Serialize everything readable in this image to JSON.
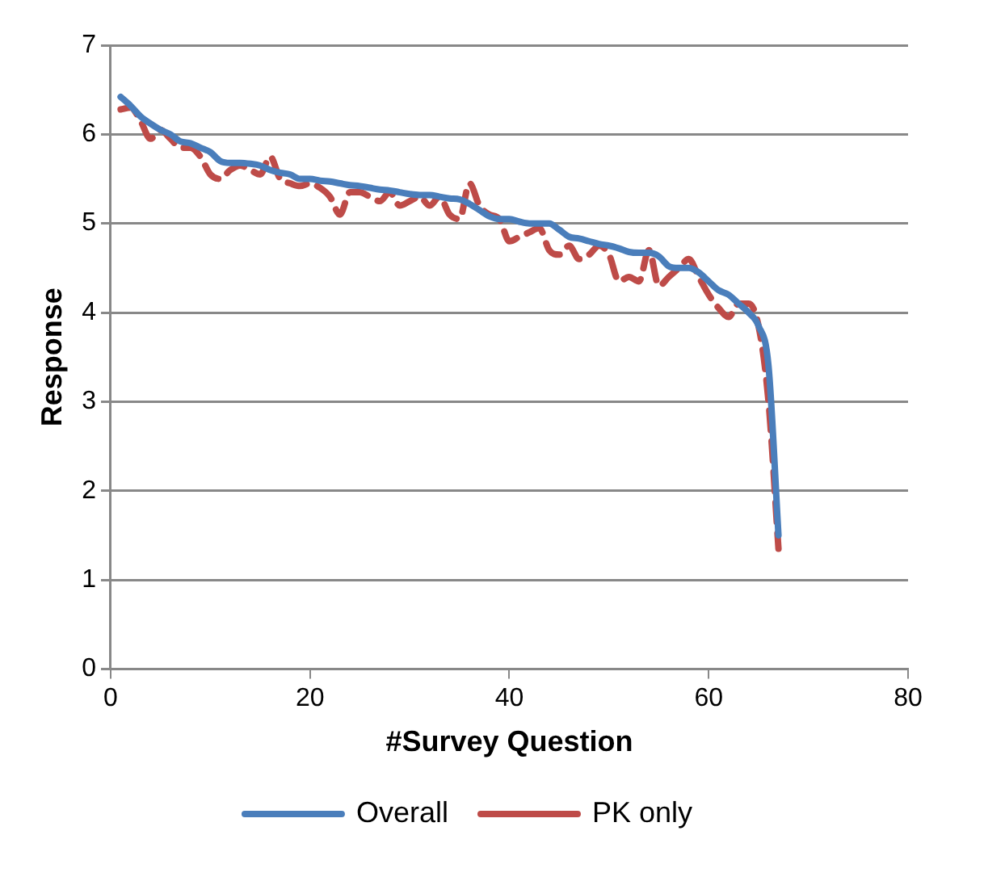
{
  "chart_data": {
    "type": "line",
    "xlabel": "#Survey Question",
    "ylabel": "Response",
    "x": [
      1,
      2,
      3,
      4,
      5,
      6,
      7,
      8,
      9,
      10,
      11,
      12,
      13,
      14,
      15,
      16,
      17,
      18,
      19,
      20,
      21,
      22,
      23,
      24,
      25,
      26,
      27,
      28,
      29,
      30,
      31,
      32,
      33,
      34,
      35,
      36,
      37,
      38,
      39,
      40,
      41,
      42,
      43,
      44,
      45,
      46,
      47,
      48,
      49,
      50,
      51,
      52,
      53,
      54,
      55,
      56,
      57,
      58,
      59,
      60,
      61,
      62,
      63,
      64,
      65,
      66,
      67
    ],
    "series": [
      {
        "name": "Overall",
        "color": "#4a7ebb",
        "line_style": "solid",
        "values": [
          6.42,
          6.32,
          6.2,
          6.12,
          6.05,
          6.0,
          5.92,
          5.9,
          5.85,
          5.8,
          5.7,
          5.68,
          5.68,
          5.67,
          5.65,
          5.6,
          5.57,
          5.55,
          5.5,
          5.5,
          5.48,
          5.47,
          5.45,
          5.43,
          5.42,
          5.4,
          5.38,
          5.37,
          5.35,
          5.33,
          5.32,
          5.32,
          5.3,
          5.28,
          5.27,
          5.22,
          5.15,
          5.08,
          5.05,
          5.05,
          5.02,
          5.0,
          5.0,
          5.0,
          4.93,
          4.85,
          4.83,
          4.8,
          4.77,
          4.75,
          4.72,
          4.68,
          4.67,
          4.67,
          4.63,
          4.52,
          4.5,
          4.5,
          4.45,
          4.35,
          4.25,
          4.2,
          4.1,
          4.0,
          3.85,
          3.4,
          1.5
        ]
      },
      {
        "name": "PK only",
        "color": "#be4b48",
        "line_style": "dashed",
        "values": [
          6.28,
          6.3,
          6.15,
          5.95,
          6.05,
          5.95,
          5.85,
          5.85,
          5.75,
          5.55,
          5.5,
          5.6,
          5.65,
          5.6,
          5.55,
          5.75,
          5.5,
          5.45,
          5.42,
          5.45,
          5.4,
          5.3,
          5.1,
          5.35,
          5.35,
          5.3,
          5.25,
          5.35,
          5.2,
          5.25,
          5.3,
          5.2,
          5.3,
          5.1,
          5.05,
          5.45,
          5.2,
          5.1,
          5.05,
          4.8,
          4.85,
          4.9,
          4.95,
          4.7,
          4.65,
          4.75,
          4.6,
          4.65,
          4.75,
          4.65,
          4.35,
          4.4,
          4.35,
          4.7,
          4.3,
          4.4,
          4.5,
          4.6,
          4.4,
          4.2,
          4.05,
          3.95,
          4.1,
          4.1,
          3.85,
          3.0,
          1.35
        ]
      }
    ],
    "xlim": [
      0,
      80
    ],
    "xticks": [
      0,
      20,
      40,
      60,
      80
    ],
    "ylim": [
      0,
      7
    ],
    "yticks": [
      0,
      1,
      2,
      3,
      4,
      5,
      6,
      7
    ],
    "grid": "y",
    "legend": "bottom",
    "marker": "none"
  }
}
